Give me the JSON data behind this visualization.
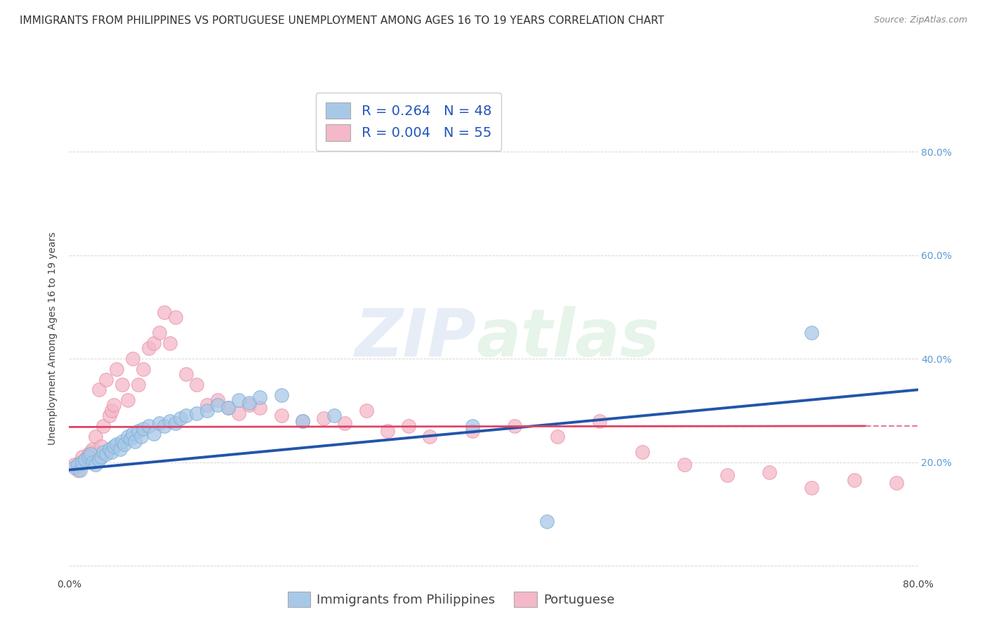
{
  "title": "IMMIGRANTS FROM PHILIPPINES VS PORTUGUESE UNEMPLOYMENT AMONG AGES 16 TO 19 YEARS CORRELATION CHART",
  "source": "Source: ZipAtlas.com",
  "ylabel": "Unemployment Among Ages 16 to 19 years",
  "xlim": [
    0.0,
    0.8
  ],
  "ylim": [
    -0.02,
    0.9
  ],
  "yticks": [
    0.0,
    0.2,
    0.4,
    0.6,
    0.8
  ],
  "xticks": [
    0.0,
    0.2,
    0.4,
    0.6,
    0.8
  ],
  "blue_color": "#a8c8e8",
  "blue_edge_color": "#7aafd4",
  "pink_color": "#f4b8c8",
  "pink_edge_color": "#e890a8",
  "blue_line_color": "#2255aa",
  "pink_line_color": "#dd4466",
  "legend_R_blue": "R = 0.264",
  "legend_N_blue": "N = 48",
  "legend_R_pink": "R = 0.004",
  "legend_N_pink": "N = 55",
  "watermark_zip": "ZIP",
  "watermark_atlas": "atlas",
  "bg_color": "#ffffff",
  "grid_color": "#cccccc",
  "title_fontsize": 11,
  "axis_label_fontsize": 10,
  "tick_fontsize": 10,
  "legend_fontsize": 14,
  "blue_scatter_x": [
    0.005,
    0.008,
    0.01,
    0.012,
    0.015,
    0.018,
    0.02,
    0.022,
    0.025,
    0.028,
    0.03,
    0.032,
    0.035,
    0.038,
    0.04,
    0.042,
    0.045,
    0.048,
    0.05,
    0.052,
    0.055,
    0.058,
    0.06,
    0.062,
    0.065,
    0.068,
    0.07,
    0.075,
    0.08,
    0.085,
    0.09,
    0.095,
    0.1,
    0.105,
    0.11,
    0.12,
    0.13,
    0.14,
    0.15,
    0.16,
    0.17,
    0.18,
    0.2,
    0.22,
    0.25,
    0.38,
    0.45,
    0.7
  ],
  "blue_scatter_y": [
    0.19,
    0.195,
    0.185,
    0.2,
    0.205,
    0.21,
    0.215,
    0.2,
    0.195,
    0.205,
    0.21,
    0.22,
    0.215,
    0.225,
    0.22,
    0.23,
    0.235,
    0.225,
    0.24,
    0.235,
    0.25,
    0.245,
    0.255,
    0.24,
    0.26,
    0.25,
    0.265,
    0.27,
    0.255,
    0.275,
    0.27,
    0.28,
    0.275,
    0.285,
    0.29,
    0.295,
    0.3,
    0.31,
    0.305,
    0.32,
    0.315,
    0.325,
    0.33,
    0.28,
    0.29,
    0.27,
    0.085,
    0.45
  ],
  "pink_scatter_x": [
    0.005,
    0.008,
    0.01,
    0.012,
    0.015,
    0.018,
    0.02,
    0.022,
    0.025,
    0.028,
    0.03,
    0.032,
    0.035,
    0.038,
    0.04,
    0.042,
    0.045,
    0.05,
    0.055,
    0.06,
    0.065,
    0.07,
    0.075,
    0.08,
    0.085,
    0.09,
    0.095,
    0.1,
    0.11,
    0.12,
    0.13,
    0.14,
    0.15,
    0.16,
    0.17,
    0.18,
    0.2,
    0.22,
    0.24,
    0.26,
    0.28,
    0.3,
    0.32,
    0.34,
    0.38,
    0.42,
    0.46,
    0.5,
    0.54,
    0.58,
    0.62,
    0.66,
    0.7,
    0.74,
    0.78
  ],
  "pink_scatter_y": [
    0.195,
    0.185,
    0.2,
    0.21,
    0.205,
    0.215,
    0.22,
    0.225,
    0.25,
    0.34,
    0.23,
    0.27,
    0.36,
    0.29,
    0.3,
    0.31,
    0.38,
    0.35,
    0.32,
    0.4,
    0.35,
    0.38,
    0.42,
    0.43,
    0.45,
    0.49,
    0.43,
    0.48,
    0.37,
    0.35,
    0.31,
    0.32,
    0.305,
    0.295,
    0.31,
    0.305,
    0.29,
    0.28,
    0.285,
    0.275,
    0.3,
    0.26,
    0.27,
    0.25,
    0.26,
    0.27,
    0.25,
    0.28,
    0.22,
    0.195,
    0.175,
    0.18,
    0.15,
    0.165,
    0.16
  ],
  "blue_trend_x": [
    0.0,
    0.8
  ],
  "blue_trend_y": [
    0.185,
    0.34
  ],
  "pink_trend_x": [
    0.0,
    0.75
  ],
  "pink_trend_y": [
    0.268,
    0.27
  ],
  "blue_trend_end_x": 0.78,
  "blue_trend_end_y": 0.335
}
